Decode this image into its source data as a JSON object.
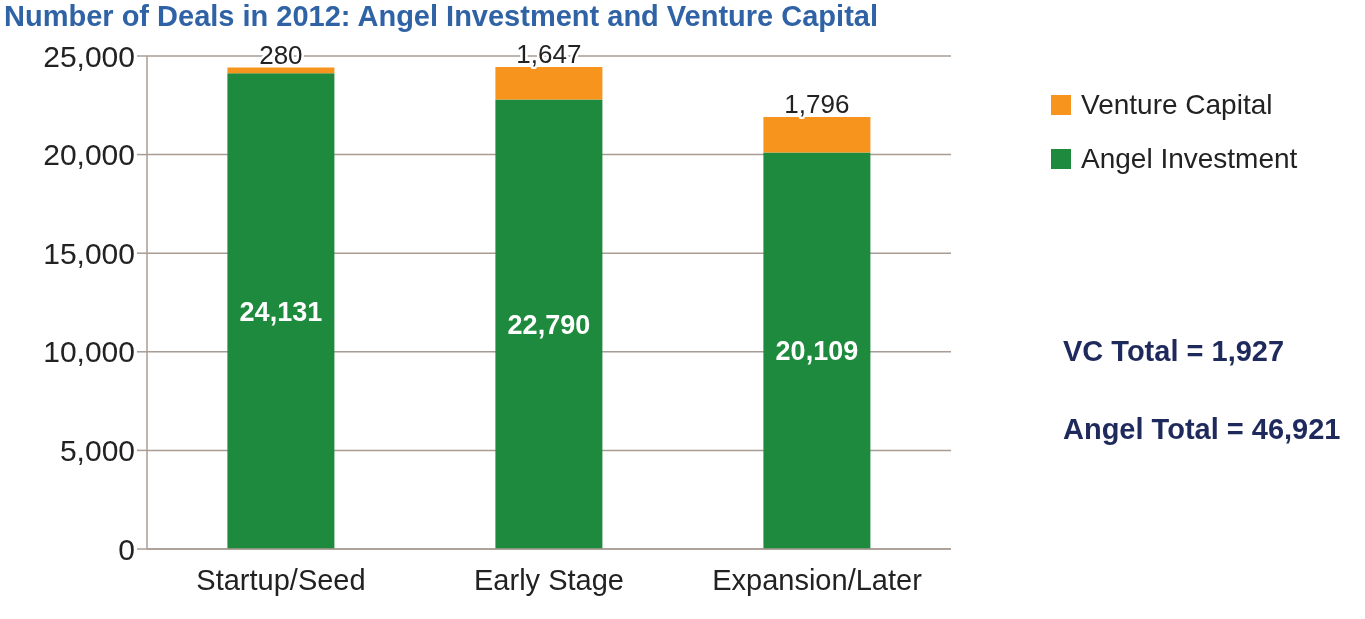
{
  "chart_data": {
    "type": "bar",
    "title": "Number of Deals in 2012: Angel Investment and Venture Capital",
    "categories": [
      "Startup/Seed",
      "Early Stage",
      "Expansion/Later"
    ],
    "series": [
      {
        "name": "Angel Investment",
        "color": "#1e8a3e",
        "values": [
          24131,
          22790,
          20109
        ],
        "value_labels": [
          "24,131",
          "22,790",
          "20,109"
        ]
      },
      {
        "name": "Venture Capital",
        "color": "#f7941d",
        "values": [
          280,
          1647,
          1796
        ],
        "value_labels": [
          "280",
          "1,647",
          "1,796"
        ]
      }
    ],
    "stacked": true,
    "ylim": [
      0,
      25000
    ],
    "yticks": [
      0,
      {
        "value": 5000,
        "label": "5,000"
      },
      {
        "value": 10000,
        "label": "10,000"
      },
      {
        "value": 15000,
        "label": "15,000"
      },
      {
        "value": 20000,
        "label": "20,000"
      },
      {
        "value": 25000,
        "label": "25,000"
      }
    ],
    "grid": "y",
    "legend": "top right",
    "annotations": [
      "VC Total = 1,927",
      "Angel Total = 46,921"
    ]
  }
}
